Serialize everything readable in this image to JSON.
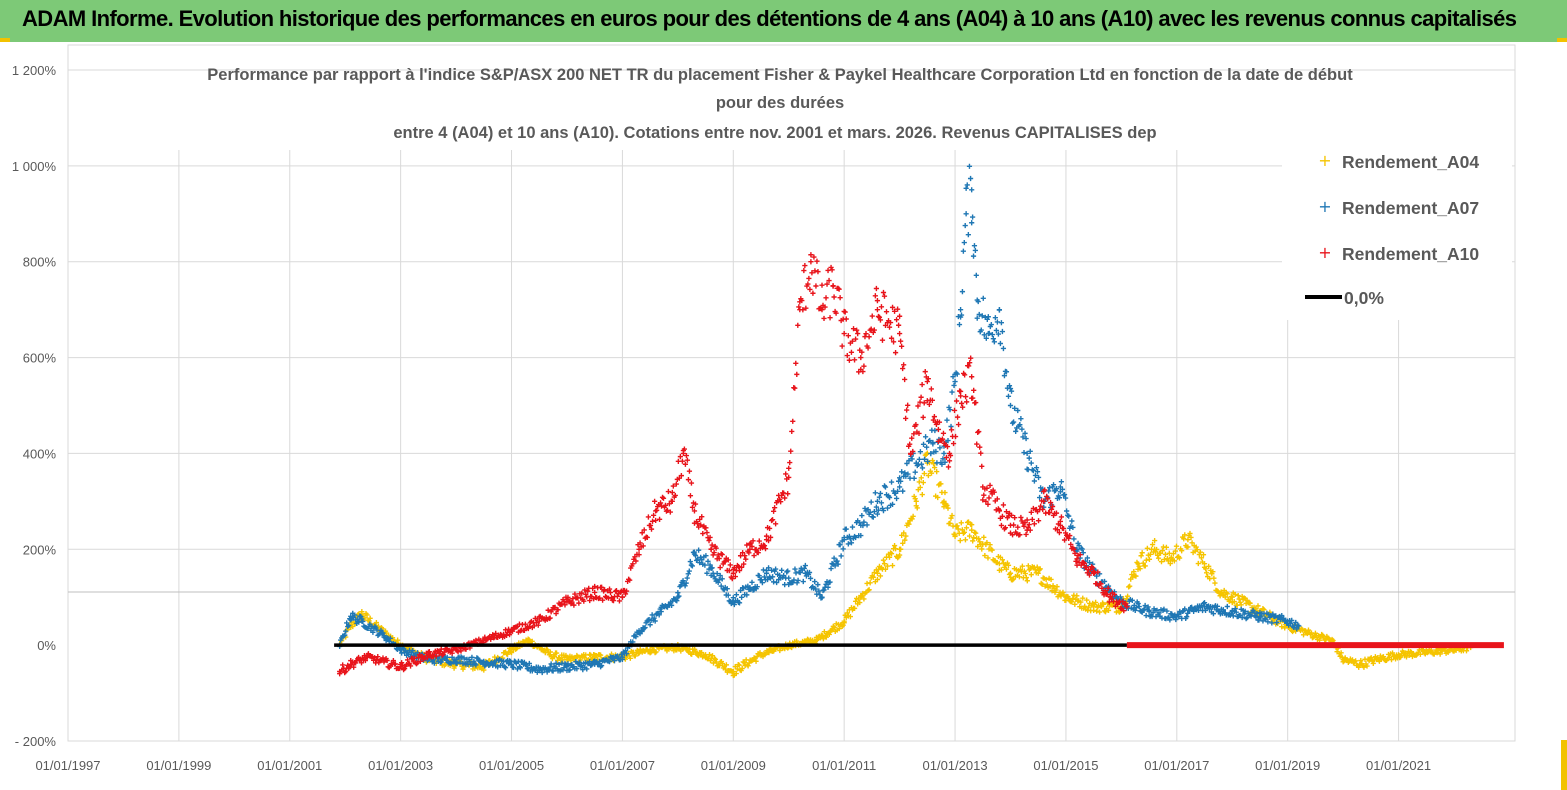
{
  "header": {
    "banner": "ADAM Informe. Evolution historique des performances en euros pour des détentions de 4 ans (A04) à 10 ans (A10) avec les revenus connus capitalisés"
  },
  "colors": {
    "banner_bg": "#7DC977",
    "a04": "#F5C400",
    "a07": "#1F77B4",
    "a10": "#E8141B",
    "zero": "#000000",
    "grid": "#D9D9D9"
  },
  "chart_data": {
    "type": "scatter",
    "title_lines": [
      "Performance par rapport à l'indice S&P/ASX 200 NET TR  du placement Fisher & Paykel Healthcare Corporation Ltd en fonction de la date de début",
      "pour des durées",
      "entre 4 (A04) et 10 ans (A10). Cotations entre nov. 2001 et mars. 2026. Revenus CAPITALISES dep"
    ],
    "x_ticks": [
      "01/01/1997",
      "01/01/1999",
      "01/01/2001",
      "01/01/2003",
      "01/01/2005",
      "01/01/2007",
      "01/01/2009",
      "01/01/2011",
      "01/01/2013",
      "01/01/2015",
      "01/01/2017",
      "01/01/2019",
      "01/01/2021"
    ],
    "x_range": [
      1997.0,
      2023.1
    ],
    "y_ticks": [
      "- 200%",
      "0%",
      "200%",
      "400%",
      "600%",
      "800%",
      "1 000%",
      "1 200%"
    ],
    "y_tick_values": [
      -200,
      0,
      200,
      400,
      600,
      800,
      1000,
      1200
    ],
    "ylim": [
      -200,
      1200
    ],
    "legend": [
      "Rendement_A04",
      "Rendement_A07",
      "Rendement_A10",
      "0,0%"
    ],
    "series": [
      {
        "name": "Rendement_A04",
        "x": [
          2001.9,
          2002.1,
          2002.3,
          2002.6,
          2003.0,
          2003.5,
          2004.0,
          2004.5,
          2005.0,
          2005.3,
          2005.7,
          2006.0,
          2006.5,
          2007.0,
          2007.5,
          2008.0,
          2008.5,
          2009.0,
          2009.5,
          2010.0,
          2010.5,
          2011.0,
          2011.3,
          2011.6,
          2012.0,
          2012.3,
          2012.5,
          2012.8,
          2013.0,
          2013.3,
          2013.5,
          2013.8,
          2014.0,
          2014.5,
          2015.0,
          2015.5,
          2016.0,
          2016.3,
          2016.6,
          2016.9,
          2017.2,
          2017.5,
          2017.8,
          2018.0,
          2018.5,
          2019.0,
          2019.5,
          2019.8,
          2020.0,
          2020.3,
          2020.6,
          2021.0,
          2021.5,
          2022.0,
          2022.3
        ],
        "values": [
          0,
          40,
          65,
          35,
          0,
          -30,
          -40,
          -45,
          -10,
          10,
          -20,
          -30,
          -25,
          -25,
          -10,
          -5,
          -20,
          -55,
          -20,
          0,
          10,
          50,
          100,
          150,
          200,
          300,
          380,
          300,
          230,
          240,
          210,
          170,
          150,
          150,
          100,
          80,
          80,
          170,
          200,
          180,
          220,
          170,
          110,
          100,
          70,
          40,
          20,
          10,
          -30,
          -40,
          -30,
          -20,
          -15,
          -10,
          -5
        ]
      },
      {
        "name": "Rendement_A07",
        "x": [
          2001.9,
          2002.1,
          2002.3,
          2002.7,
          2003.0,
          2003.5,
          2004.0,
          2004.5,
          2005.0,
          2005.5,
          2006.0,
          2006.5,
          2007.0,
          2007.3,
          2007.7,
          2008.0,
          2008.3,
          2008.6,
          2009.0,
          2009.3,
          2009.6,
          2010.0,
          2010.3,
          2010.6,
          2011.0,
          2011.3,
          2011.6,
          2012.0,
          2012.3,
          2012.6,
          2012.8,
          2013.0,
          2013.1,
          2013.2,
          2013.3,
          2013.4,
          2013.6,
          2013.8,
          2014.0,
          2014.3,
          2014.6,
          2014.9,
          2015.2,
          2015.5,
          2016.0,
          2016.5,
          2017.0,
          2017.5,
          2018.0,
          2018.5,
          2019.0,
          2019.2
        ],
        "values": [
          0,
          60,
          50,
          20,
          -10,
          -30,
          -30,
          -35,
          -40,
          -50,
          -45,
          -40,
          -25,
          30,
          70,
          100,
          190,
          160,
          90,
          120,
          150,
          140,
          150,
          100,
          220,
          250,
          300,
          330,
          380,
          420,
          400,
          550,
          700,
          900,
          950,
          720,
          650,
          700,
          500,
          400,
          300,
          330,
          200,
          150,
          90,
          70,
          60,
          80,
          70,
          60,
          50,
          40
        ]
      },
      {
        "name": "Rendement_A10",
        "x": [
          2001.9,
          2002.1,
          2002.4,
          2002.7,
          2003.0,
          2003.5,
          2004.0,
          2004.5,
          2005.0,
          2005.5,
          2006.0,
          2006.5,
          2007.0,
          2007.3,
          2007.6,
          2007.9,
          2008.1,
          2008.3,
          2008.6,
          2009.0,
          2009.3,
          2009.6,
          2010.0,
          2010.2,
          2010.4,
          2010.6,
          2010.8,
          2011.0,
          2011.3,
          2011.6,
          2012.0,
          2012.2,
          2012.5,
          2012.7,
          2012.9,
          2013.1,
          2013.3,
          2013.5,
          2013.8,
          2014.0,
          2014.3,
          2014.6,
          2014.9,
          2015.2,
          2015.5,
          2015.8,
          2016.1
        ],
        "values": [
          -55,
          -40,
          -25,
          -35,
          -45,
          -20,
          -10,
          10,
          30,
          50,
          90,
          110,
          100,
          200,
          280,
          300,
          400,
          280,
          200,
          150,
          200,
          220,
          350,
          700,
          800,
          700,
          750,
          650,
          600,
          700,
          650,
          400,
          550,
          450,
          400,
          520,
          560,
          330,
          280,
          250,
          240,
          300,
          250,
          180,
          150,
          100,
          80
        ]
      },
      {
        "name": "0,0%",
        "x": [
          2001.8,
          2022.9
        ],
        "values": [
          0,
          0
        ]
      }
    ]
  }
}
